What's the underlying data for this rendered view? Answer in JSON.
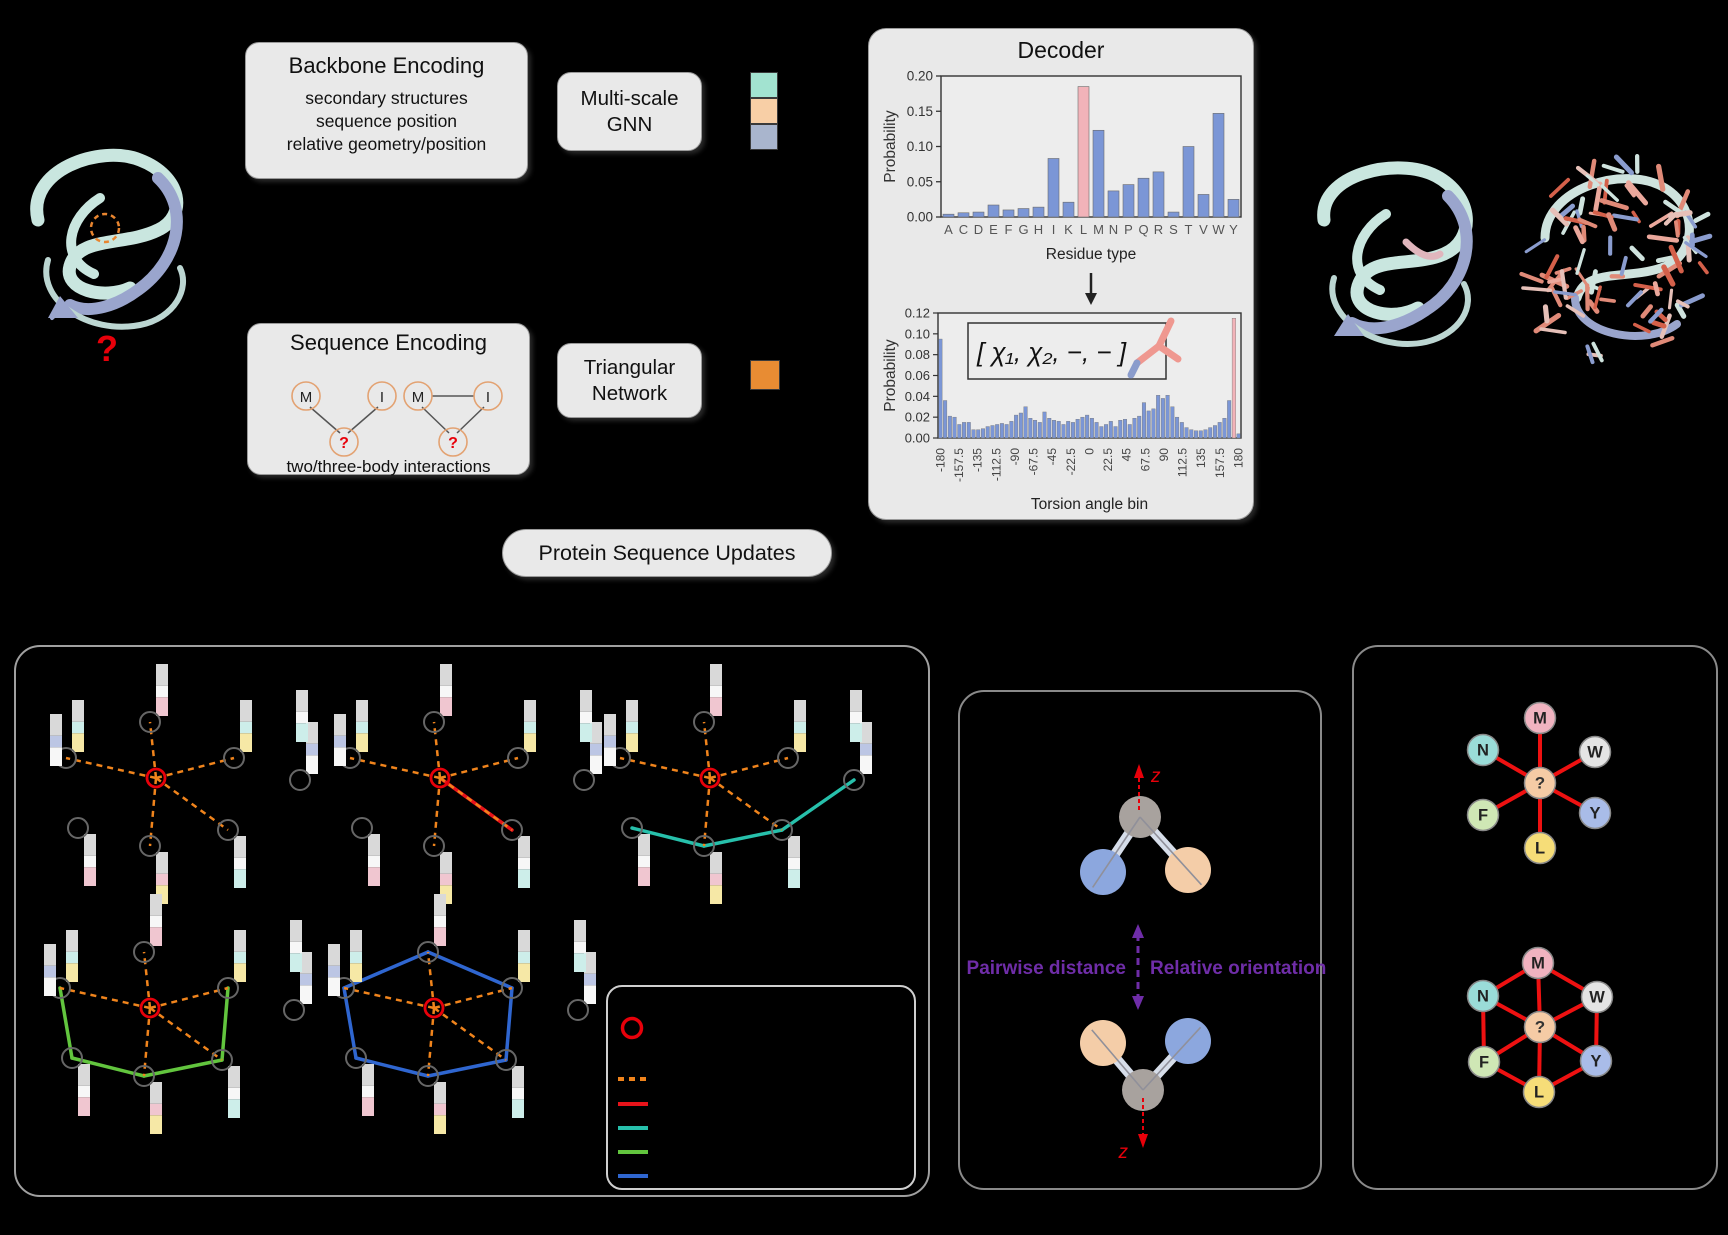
{
  "colors": {
    "panel_bg": "#e9e9e9",
    "bar_blue": "#7b96d6",
    "bar_highlight": "#f2b3b9",
    "knn_edge_orange": "#f0841c",
    "edge_red": "#e8131a",
    "edge_teal": "#27c0ab",
    "edge_green": "#62c53e",
    "edge_blue": "#2f66d0",
    "label_purple": "#6f2da8",
    "accent_red": "#e8000a",
    "swatch_orange": "#e88c33",
    "gnn_swatches": [
      "#a2e3d0",
      "#f8cfa6",
      "#a9b5cd"
    ]
  },
  "top": {
    "unknown_mark": "?",
    "backbone_box": {
      "title": "Backbone Encoding",
      "lines": [
        "secondary structures",
        "sequence position",
        "relative geometry/position"
      ]
    },
    "multiscale_box": {
      "line1": "Multi-scale",
      "line2": "GNN"
    },
    "sequence_box": {
      "title": "Sequence Encoding",
      "caption": "two/three-body interactions",
      "labels": {
        "m": "M",
        "i": "I",
        "unknown": "?"
      }
    },
    "triangular_box": {
      "line1": "Triangular",
      "line2": "Network"
    },
    "updates_pill": "Protein Sequence Updates",
    "decoder": {
      "title": "Decoder",
      "inset_formula": "[ χ₁, χ₂, −, − ]"
    }
  },
  "chart_data": [
    {
      "type": "bar",
      "title": "Decoder",
      "categories": [
        "A",
        "C",
        "D",
        "E",
        "F",
        "G",
        "H",
        "I",
        "K",
        "L",
        "M",
        "N",
        "P",
        "Q",
        "R",
        "S",
        "T",
        "V",
        "W",
        "Y"
      ],
      "values": [
        0.004,
        0.006,
        0.007,
        0.017,
        0.01,
        0.012,
        0.014,
        0.083,
        0.021,
        0.185,
        0.123,
        0.037,
        0.046,
        0.055,
        0.064,
        0.007,
        0.1,
        0.032,
        0.147,
        0.025
      ],
      "highlight_index": 9,
      "highlight_color": "#f2b3b9",
      "bar_color": "#7b96d6",
      "xlabel": "Residue type",
      "ylabel": "Probability",
      "ylim": [
        0,
        0.2
      ],
      "yticks": [
        "0.00",
        "0.05",
        "0.10",
        "0.15",
        "0.20"
      ],
      "grid": false,
      "legend": false
    },
    {
      "type": "bar",
      "bins": 64,
      "bin_range": [
        -180,
        180
      ],
      "values": [
        0.095,
        0.036,
        0.021,
        0.02,
        0.013,
        0.015,
        0.015,
        0.008,
        0.008,
        0.009,
        0.011,
        0.012,
        0.013,
        0.014,
        0.013,
        0.016,
        0.022,
        0.024,
        0.03,
        0.019,
        0.017,
        0.015,
        0.025,
        0.019,
        0.017,
        0.016,
        0.013,
        0.016,
        0.015,
        0.018,
        0.02,
        0.022,
        0.019,
        0.015,
        0.011,
        0.013,
        0.016,
        0.011,
        0.017,
        0.018,
        0.013,
        0.019,
        0.021,
        0.034,
        0.026,
        0.028,
        0.041,
        0.038,
        0.041,
        0.03,
        0.02,
        0.015,
        0.01,
        0.008,
        0.007,
        0.007,
        0.008,
        0.01,
        0.012,
        0.015,
        0.019,
        0.036,
        0.115,
        0.004
      ],
      "highlight_index": 62,
      "highlight_color": "#f2b3b9",
      "bar_color": "#7b96d6",
      "xlabel": "Torsion angle bin",
      "ylabel": "Probability",
      "ylim": [
        0,
        0.12
      ],
      "yticks": [
        "0.00",
        "0.02",
        "0.04",
        "0.06",
        "0.08",
        "0.10",
        "0.12"
      ],
      "xticks": [
        "-180",
        "-157.5",
        "-135",
        "-112.5",
        "-90",
        "-67.5",
        "-45",
        "-22.5",
        "0",
        "22.5",
        "45",
        "67.5",
        "90",
        "112.5",
        "135",
        "157.5",
        "180"
      ],
      "annotation": "[ χ₁, χ₂, −, − ]",
      "grid": false,
      "legend": false
    }
  ],
  "bottom": {
    "middle_panel": {
      "left_label": "Pairwise distance",
      "right_label": "Relative orientation",
      "axis_label": "z"
    },
    "right_panel": {
      "center_label": "?",
      "node_labels": [
        "M",
        "W",
        "Y",
        "L",
        "F",
        "N"
      ],
      "node_colors": {
        "M": "#f0b3c0",
        "W": "#e4e4e4",
        "Y": "#a9bce8",
        "L": "#f6dd78",
        "F": "#cfe7b5",
        "N": "#9adcd8",
        "center": "#f5cba5"
      }
    },
    "legend_markers": [
      "ring-red",
      "dashed-orange",
      "line-red",
      "line-teal",
      "line-green",
      "line-blue"
    ]
  }
}
